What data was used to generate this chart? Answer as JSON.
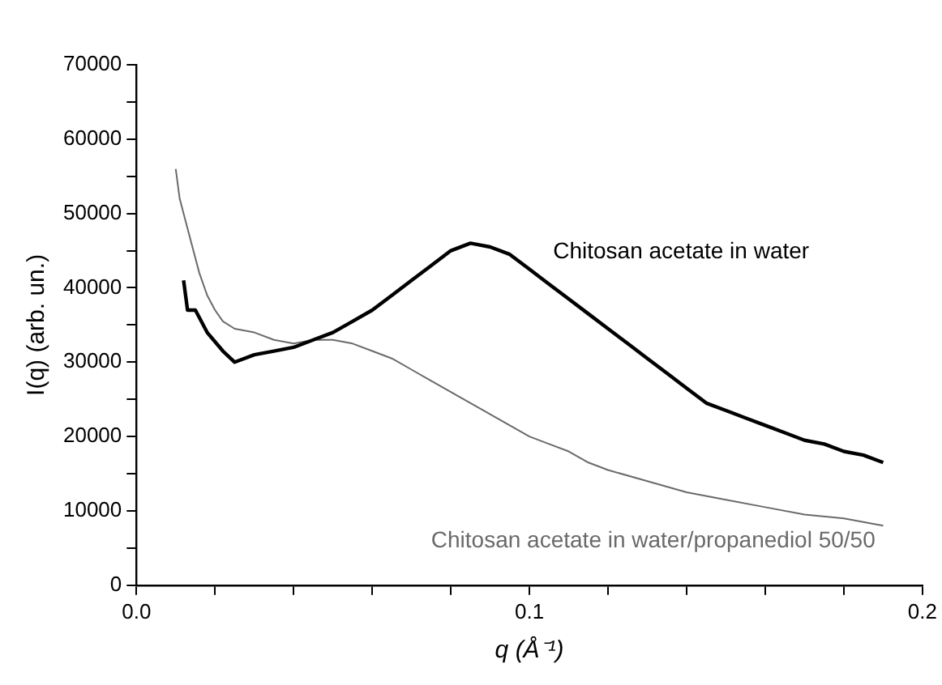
{
  "chart_data": {
    "type": "line",
    "xlabel": "q (Å⁻¹)",
    "ylabel": "I(q) (arb. un.)",
    "xlim": [
      0,
      0.2
    ],
    "xticks": [
      {
        "value": 0,
        "label": "0.0"
      },
      {
        "value": 0.02,
        "label": null
      },
      {
        "value": 0.04,
        "label": null
      },
      {
        "value": 0.06,
        "label": null
      },
      {
        "value": 0.08,
        "label": null
      },
      {
        "value": 0.1,
        "label": "0.1"
      },
      {
        "value": 0.12,
        "label": null
      },
      {
        "value": 0.14,
        "label": null
      },
      {
        "value": 0.16,
        "label": null
      },
      {
        "value": 0.18,
        "label": null
      },
      {
        "value": 0.2,
        "label": "0.2"
      }
    ],
    "ylim": [
      0,
      70000
    ],
    "yticks": [
      0,
      {
        "value": 5000,
        "label": null
      },
      10000,
      {
        "value": 15000,
        "label": null
      },
      20000,
      {
        "value": 25000,
        "label": null
      },
      30000,
      {
        "value": 35000,
        "label": null
      },
      40000,
      {
        "value": 45000,
        "label": null
      },
      50000,
      {
        "value": 55000,
        "label": null
      },
      60000,
      {
        "value": 65000,
        "label": null
      },
      70000
    ],
    "grid": false,
    "legend": false,
    "marker": "none",
    "line_style": "solid",
    "series": [
      {
        "name": "Chitosan acetate in water",
        "color": "#000000",
        "x": [
          0.012,
          0.013,
          0.015,
          0.018,
          0.022,
          0.025,
          0.03,
          0.035,
          0.04,
          0.045,
          0.05,
          0.055,
          0.06,
          0.065,
          0.07,
          0.075,
          0.08,
          0.085,
          0.09,
          0.095,
          0.1,
          0.105,
          0.11,
          0.115,
          0.12,
          0.125,
          0.13,
          0.135,
          0.14,
          0.145,
          0.15,
          0.155,
          0.16,
          0.165,
          0.17,
          0.175,
          0.18,
          0.185,
          0.19
        ],
        "values": [
          41000,
          37000,
          37000,
          34000,
          31500,
          30000,
          31000,
          31500,
          32000,
          33000,
          34000,
          35500,
          37000,
          39000,
          41000,
          43000,
          45000,
          46000,
          45500,
          44500,
          42500,
          40500,
          38500,
          36500,
          34500,
          32500,
          30500,
          28500,
          26500,
          24500,
          23500,
          22500,
          21500,
          20500,
          19500,
          19000,
          18000,
          17500,
          16500
        ]
      },
      {
        "name": "Chitosan acetate in water/propanediol 50/50",
        "color": "#6a6a6a",
        "x": [
          0.01,
          0.011,
          0.012,
          0.014,
          0.016,
          0.018,
          0.02,
          0.022,
          0.025,
          0.03,
          0.035,
          0.04,
          0.045,
          0.05,
          0.055,
          0.06,
          0.065,
          0.07,
          0.075,
          0.08,
          0.085,
          0.09,
          0.095,
          0.1,
          0.105,
          0.11,
          0.115,
          0.12,
          0.13,
          0.14,
          0.15,
          0.16,
          0.17,
          0.18,
          0.19
        ],
        "values": [
          56000,
          52000,
          50000,
          46000,
          42000,
          39000,
          37000,
          35500,
          34500,
          34000,
          33000,
          32500,
          33000,
          33000,
          32500,
          31500,
          30500,
          29000,
          27500,
          26000,
          24500,
          23000,
          21500,
          20000,
          19000,
          18000,
          16500,
          15500,
          14000,
          12500,
          11500,
          10500,
          9500,
          9000,
          8000
        ]
      }
    ]
  }
}
